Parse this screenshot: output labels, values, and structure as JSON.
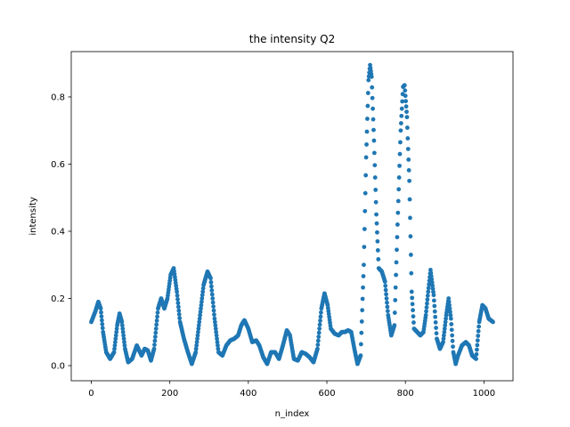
{
  "chart_data": {
    "type": "scatter",
    "title": "the intensity Q2",
    "xlabel": "n_index",
    "ylabel": "intensity",
    "xlim": [
      -51,
      1074
    ],
    "ylim": [
      -0.045,
      0.935
    ],
    "xticks": [
      0,
      200,
      400,
      600,
      800,
      1000
    ],
    "yticks": [
      0.0,
      0.2,
      0.4,
      0.6,
      0.8
    ],
    "xtick_labels": [
      "0",
      "200",
      "400",
      "600",
      "800",
      "1000"
    ],
    "ytick_labels": [
      "0.0",
      "0.2",
      "0.4",
      "0.6",
      "0.8"
    ],
    "grid": false,
    "point_color": "#1f77b4",
    "n_points": 1024,
    "series": [
      {
        "profile": [
          [
            0,
            0.13
          ],
          [
            10,
            0.16
          ],
          [
            18,
            0.19
          ],
          [
            24,
            0.17
          ],
          [
            30,
            0.1
          ],
          [
            38,
            0.04
          ],
          [
            48,
            0.02
          ],
          [
            58,
            0.04
          ],
          [
            66,
            0.12
          ],
          [
            72,
            0.155
          ],
          [
            78,
            0.13
          ],
          [
            86,
            0.05
          ],
          [
            94,
            0.01
          ],
          [
            104,
            0.02
          ],
          [
            116,
            0.06
          ],
          [
            128,
            0.03
          ],
          [
            136,
            0.05
          ],
          [
            144,
            0.045
          ],
          [
            152,
            0.015
          ],
          [
            160,
            0.05
          ],
          [
            170,
            0.17
          ],
          [
            178,
            0.2
          ],
          [
            186,
            0.17
          ],
          [
            194,
            0.2
          ],
          [
            202,
            0.27
          ],
          [
            210,
            0.29
          ],
          [
            218,
            0.22
          ],
          [
            226,
            0.13
          ],
          [
            236,
            0.08
          ],
          [
            246,
            0.04
          ],
          [
            256,
            0.005
          ],
          [
            266,
            0.04
          ],
          [
            276,
            0.14
          ],
          [
            286,
            0.24
          ],
          [
            296,
            0.28
          ],
          [
            304,
            0.26
          ],
          [
            314,
            0.14
          ],
          [
            324,
            0.04
          ],
          [
            334,
            0.03
          ],
          [
            344,
            0.06
          ],
          [
            354,
            0.075
          ],
          [
            364,
            0.08
          ],
          [
            374,
            0.09
          ],
          [
            382,
            0.12
          ],
          [
            390,
            0.135
          ],
          [
            400,
            0.11
          ],
          [
            410,
            0.07
          ],
          [
            420,
            0.075
          ],
          [
            428,
            0.06
          ],
          [
            438,
            0.025
          ],
          [
            448,
            0.005
          ],
          [
            458,
            0.04
          ],
          [
            468,
            0.04
          ],
          [
            478,
            0.02
          ],
          [
            488,
            0.06
          ],
          [
            498,
            0.105
          ],
          [
            506,
            0.09
          ],
          [
            516,
            0.02
          ],
          [
            526,
            0.015
          ],
          [
            536,
            0.04
          ],
          [
            546,
            0.035
          ],
          [
            556,
            0.025
          ],
          [
            566,
            0.01
          ],
          [
            576,
            0.05
          ],
          [
            586,
            0.17
          ],
          [
            594,
            0.215
          ],
          [
            602,
            0.18
          ],
          [
            610,
            0.11
          ],
          [
            620,
            0.095
          ],
          [
            630,
            0.09
          ],
          [
            638,
            0.1
          ],
          [
            646,
            0.1
          ],
          [
            654,
            0.105
          ],
          [
            662,
            0.1
          ],
          [
            670,
            0.05
          ],
          [
            678,
            0.005
          ],
          [
            686,
            0.03
          ],
          [
            694,
            0.3
          ],
          [
            700,
            0.62
          ],
          [
            706,
            0.85
          ],
          [
            710,
            0.895
          ],
          [
            714,
            0.86
          ],
          [
            720,
            0.67
          ],
          [
            726,
            0.45
          ],
          [
            732,
            0.29
          ],
          [
            740,
            0.28
          ],
          [
            748,
            0.25
          ],
          [
            756,
            0.15
          ],
          [
            764,
            0.09
          ],
          [
            772,
            0.12
          ],
          [
            780,
            0.42
          ],
          [
            788,
            0.7
          ],
          [
            794,
            0.83
          ],
          [
            798,
            0.835
          ],
          [
            804,
            0.74
          ],
          [
            810,
            0.55
          ],
          [
            816,
            0.22
          ],
          [
            822,
            0.11
          ],
          [
            830,
            0.1
          ],
          [
            838,
            0.09
          ],
          [
            846,
            0.1
          ],
          [
            852,
            0.15
          ],
          [
            858,
            0.22
          ],
          [
            864,
            0.285
          ],
          [
            872,
            0.21
          ],
          [
            880,
            0.08
          ],
          [
            888,
            0.05
          ],
          [
            896,
            0.07
          ],
          [
            904,
            0.15
          ],
          [
            910,
            0.2
          ],
          [
            916,
            0.14
          ],
          [
            922,
            0.04
          ],
          [
            928,
            0.005
          ],
          [
            934,
            0.03
          ],
          [
            944,
            0.06
          ],
          [
            954,
            0.07
          ],
          [
            962,
            0.06
          ],
          [
            970,
            0.03
          ],
          [
            980,
            0.02
          ],
          [
            988,
            0.13
          ],
          [
            996,
            0.18
          ],
          [
            1004,
            0.17
          ],
          [
            1012,
            0.14
          ],
          [
            1023,
            0.13
          ]
        ]
      }
    ]
  }
}
